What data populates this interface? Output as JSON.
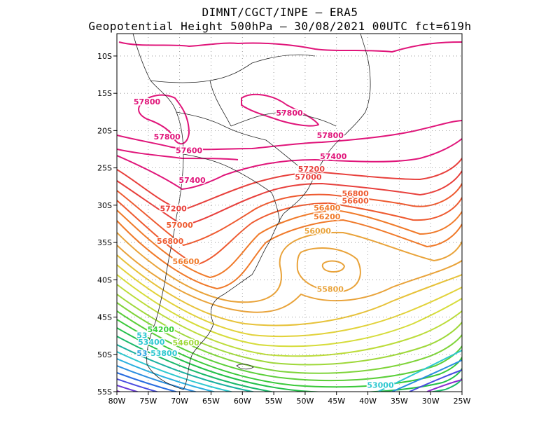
{
  "header": {
    "line1": "DIMNT/CGCT/INPE –  ERA5",
    "line2": "Geopotential Height 500hPa –  30/08/2021 00UTC fct=619h"
  },
  "map": {
    "lon_range": [
      -80,
      -25
    ],
    "lat_range": [
      -55,
      -7
    ],
    "grid": true,
    "lon_ticks": [
      {
        "v": -80,
        "label": "80W"
      },
      {
        "v": -75,
        "label": "75W"
      },
      {
        "v": -70,
        "label": "70W"
      },
      {
        "v": -65,
        "label": "65W"
      },
      {
        "v": -60,
        "label": "60W"
      },
      {
        "v": -55,
        "label": "55W"
      },
      {
        "v": -50,
        "label": "50W"
      },
      {
        "v": -45,
        "label": "45W"
      },
      {
        "v": -40,
        "label": "40W"
      },
      {
        "v": -35,
        "label": "35W"
      },
      {
        "v": -30,
        "label": "30W"
      },
      {
        "v": -25,
        "label": "25W"
      }
    ],
    "lat_ticks": [
      {
        "v": -10,
        "label": "10S"
      },
      {
        "v": -15,
        "label": "15S"
      },
      {
        "v": -20,
        "label": "20S"
      },
      {
        "v": -25,
        "label": "25S"
      },
      {
        "v": -30,
        "label": "30S"
      },
      {
        "v": -35,
        "label": "35S"
      },
      {
        "v": -40,
        "label": "40S"
      },
      {
        "v": -45,
        "label": "45S"
      },
      {
        "v": -50,
        "label": "50S"
      },
      {
        "v": -55,
        "label": "55S"
      }
    ],
    "contour_labels": [
      {
        "text": "57800",
        "lon": -75.2,
        "lat": -16.5,
        "color": "#e0157a"
      },
      {
        "text": "57800",
        "lon": -52.5,
        "lat": -18.0,
        "color": "#e0157a"
      },
      {
        "text": "57800",
        "lon": -72.0,
        "lat": -21.2,
        "color": "#e0157a"
      },
      {
        "text": "57800",
        "lon": -46.0,
        "lat": -21.0,
        "color": "#e0157a"
      },
      {
        "text": "57600",
        "lon": -68.5,
        "lat": -23.0,
        "color": "#e0157a"
      },
      {
        "text": "57400",
        "lon": -45.5,
        "lat": -23.8,
        "color": "#e0157a"
      },
      {
        "text": "57400",
        "lon": -68.0,
        "lat": -27.0,
        "color": "#e0157a"
      },
      {
        "text": "57200",
        "lon": -49.0,
        "lat": -25.5,
        "color": "#e8403c"
      },
      {
        "text": "57000",
        "lon": -49.5,
        "lat": -26.6,
        "color": "#e8403c"
      },
      {
        "text": "57200",
        "lon": -71.0,
        "lat": -30.8,
        "color": "#e8403c"
      },
      {
        "text": "56800",
        "lon": -42.0,
        "lat": -28.8,
        "color": "#ee5a30"
      },
      {
        "text": "56600",
        "lon": -42.0,
        "lat": -29.8,
        "color": "#ee5a30"
      },
      {
        "text": "57000",
        "lon": -70.0,
        "lat": -33.0,
        "color": "#ee5a30"
      },
      {
        "text": "56400",
        "lon": -46.5,
        "lat": -30.7,
        "color": "#f07a2a"
      },
      {
        "text": "56200",
        "lon": -46.5,
        "lat": -31.9,
        "color": "#f07a2a"
      },
      {
        "text": "56800",
        "lon": -71.5,
        "lat": -35.2,
        "color": "#ee5a30"
      },
      {
        "text": "56000",
        "lon": -48.0,
        "lat": -33.8,
        "color": "#e9a33a"
      },
      {
        "text": "56600",
        "lon": -69.0,
        "lat": -37.9,
        "color": "#f07a2a"
      },
      {
        "text": "55800",
        "lon": -46.0,
        "lat": -41.6,
        "color": "#e9a33a"
      },
      {
        "text": "54200",
        "lon": -73.0,
        "lat": -47.0,
        "color": "#3ad13a"
      },
      {
        "text": "53",
        "lon": -76.0,
        "lat": -47.8,
        "color": "#2ec8d0"
      },
      {
        "text": "53400",
        "lon": -74.5,
        "lat": -48.7,
        "color": "#2ec8d0"
      },
      {
        "text": "54600",
        "lon": -69.0,
        "lat": -48.8,
        "color": "#9fd83a"
      },
      {
        "text": "53",
        "lon": -76.0,
        "lat": -50.2,
        "color": "#2ea3e0"
      },
      {
        "text": "53800",
        "lon": -72.5,
        "lat": -50.2,
        "color": "#2ec8d0"
      },
      {
        "text": "53000",
        "lon": -38.0,
        "lat": -54.5,
        "color": "#2ec8d0"
      }
    ]
  }
}
